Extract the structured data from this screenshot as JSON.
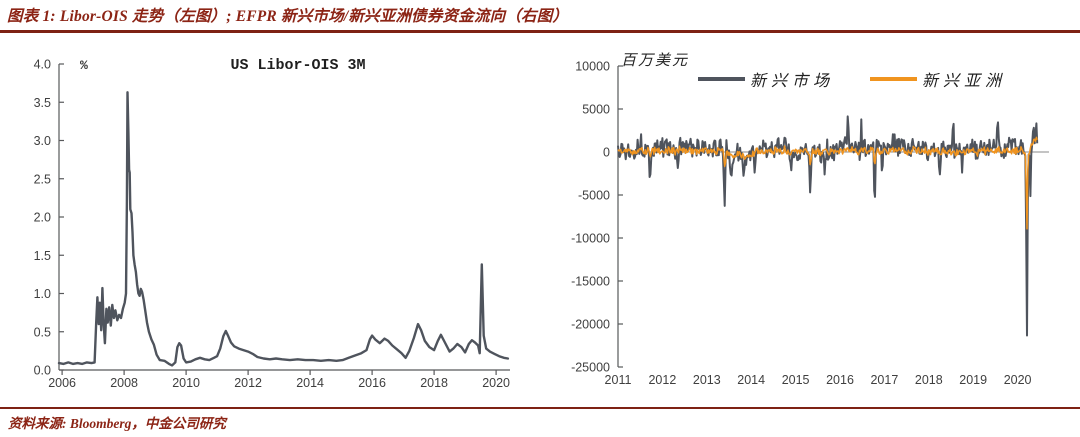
{
  "header": {
    "title": "图表 1: Libor-OIS 走势（左图）; EFPR 新兴市场/新兴亚洲债券资金流向（右图）"
  },
  "footer": {
    "source": "资料来源: Bloomberg，中金公司研究"
  },
  "colors": {
    "accent_red": "#8C2415",
    "rule_red": "#7E2214",
    "em_gray": "#4F545D",
    "asia_orange": "#F0941F",
    "axis": "#58595B",
    "zero_line": "#8a8a8a",
    "tick_text": "#3F3F3F"
  },
  "chart_data": [
    {
      "type": "line",
      "title": "US Libor-OIS 3M",
      "ylabel": "%",
      "xlim": [
        2005.9,
        2020.45
      ],
      "ylim": [
        0,
        4
      ],
      "yticks": [
        0,
        0.5,
        1,
        1.5,
        2,
        2.5,
        3,
        3.5,
        4
      ],
      "xticks": [
        2006,
        2008,
        2010,
        2012,
        2014,
        2016,
        2018,
        2020
      ],
      "grid": false,
      "series": [
        {
          "name": "US Libor-OIS 3M",
          "color_key": "em_gray",
          "points": [
            [
              2005.9,
              0.09
            ],
            [
              2006.05,
              0.08
            ],
            [
              2006.2,
              0.1
            ],
            [
              2006.35,
              0.08
            ],
            [
              2006.5,
              0.09
            ],
            [
              2006.65,
              0.08
            ],
            [
              2006.8,
              0.1
            ],
            [
              2006.95,
              0.09
            ],
            [
              2007.05,
              0.1
            ],
            [
              2007.1,
              0.62
            ],
            [
              2007.14,
              0.95
            ],
            [
              2007.18,
              0.6
            ],
            [
              2007.22,
              0.88
            ],
            [
              2007.26,
              0.52
            ],
            [
              2007.3,
              1.07
            ],
            [
              2007.34,
              0.62
            ],
            [
              2007.38,
              0.35
            ],
            [
              2007.43,
              0.8
            ],
            [
              2007.47,
              0.62
            ],
            [
              2007.52,
              0.82
            ],
            [
              2007.57,
              0.58
            ],
            [
              2007.62,
              0.85
            ],
            [
              2007.67,
              0.68
            ],
            [
              2007.72,
              0.78
            ],
            [
              2007.78,
              0.65
            ],
            [
              2007.84,
              0.72
            ],
            [
              2007.9,
              0.68
            ],
            [
              2007.96,
              0.8
            ],
            [
              2008.02,
              0.88
            ],
            [
              2008.06,
              1.0
            ],
            [
              2008.09,
              2.2
            ],
            [
              2008.11,
              3.63
            ],
            [
              2008.14,
              3.1
            ],
            [
              2008.16,
              2.62
            ],
            [
              2008.18,
              2.58
            ],
            [
              2008.2,
              2.1
            ],
            [
              2008.24,
              2.05
            ],
            [
              2008.27,
              1.8
            ],
            [
              2008.3,
              1.5
            ],
            [
              2008.34,
              1.38
            ],
            [
              2008.38,
              1.28
            ],
            [
              2008.42,
              1.12
            ],
            [
              2008.46,
              1.0
            ],
            [
              2008.5,
              0.97
            ],
            [
              2008.54,
              1.06
            ],
            [
              2008.58,
              1.02
            ],
            [
              2008.63,
              0.92
            ],
            [
              2008.68,
              0.78
            ],
            [
              2008.74,
              0.62
            ],
            [
              2008.8,
              0.5
            ],
            [
              2008.88,
              0.4
            ],
            [
              2008.96,
              0.33
            ],
            [
              2009.05,
              0.2
            ],
            [
              2009.15,
              0.13
            ],
            [
              2009.3,
              0.12
            ],
            [
              2009.45,
              0.08
            ],
            [
              2009.55,
              0.06
            ],
            [
              2009.65,
              0.1
            ],
            [
              2009.72,
              0.3
            ],
            [
              2009.78,
              0.35
            ],
            [
              2009.84,
              0.32
            ],
            [
              2009.92,
              0.15
            ],
            [
              2010.0,
              0.1
            ],
            [
              2010.15,
              0.11
            ],
            [
              2010.3,
              0.14
            ],
            [
              2010.45,
              0.16
            ],
            [
              2010.6,
              0.14
            ],
            [
              2010.75,
              0.13
            ],
            [
              2010.9,
              0.16
            ],
            [
              2011.0,
              0.18
            ],
            [
              2011.1,
              0.28
            ],
            [
              2011.2,
              0.44
            ],
            [
              2011.28,
              0.51
            ],
            [
              2011.36,
              0.44
            ],
            [
              2011.45,
              0.36
            ],
            [
              2011.55,
              0.31
            ],
            [
              2011.7,
              0.28
            ],
            [
              2011.85,
              0.26
            ],
            [
              2012.0,
              0.24
            ],
            [
              2012.15,
              0.21
            ],
            [
              2012.3,
              0.17
            ],
            [
              2012.5,
              0.15
            ],
            [
              2012.7,
              0.14
            ],
            [
              2012.9,
              0.15
            ],
            [
              2013.1,
              0.14
            ],
            [
              2013.35,
              0.13
            ],
            [
              2013.6,
              0.14
            ],
            [
              2013.85,
              0.13
            ],
            [
              2014.1,
              0.13
            ],
            [
              2014.35,
              0.12
            ],
            [
              2014.6,
              0.13
            ],
            [
              2014.85,
              0.12
            ],
            [
              2015.05,
              0.13
            ],
            [
              2015.25,
              0.16
            ],
            [
              2015.45,
              0.19
            ],
            [
              2015.65,
              0.22
            ],
            [
              2015.82,
              0.26
            ],
            [
              2015.93,
              0.4
            ],
            [
              2016.0,
              0.45
            ],
            [
              2016.1,
              0.4
            ],
            [
              2016.25,
              0.35
            ],
            [
              2016.4,
              0.41
            ],
            [
              2016.52,
              0.38
            ],
            [
              2016.65,
              0.32
            ],
            [
              2016.8,
              0.27
            ],
            [
              2016.95,
              0.22
            ],
            [
              2017.08,
              0.16
            ],
            [
              2017.2,
              0.25
            ],
            [
              2017.35,
              0.42
            ],
            [
              2017.48,
              0.6
            ],
            [
              2017.58,
              0.52
            ],
            [
              2017.7,
              0.38
            ],
            [
              2017.85,
              0.3
            ],
            [
              2018.0,
              0.26
            ],
            [
              2018.12,
              0.38
            ],
            [
              2018.22,
              0.46
            ],
            [
              2018.35,
              0.36
            ],
            [
              2018.5,
              0.24
            ],
            [
              2018.62,
              0.28
            ],
            [
              2018.75,
              0.34
            ],
            [
              2018.88,
              0.3
            ],
            [
              2019.0,
              0.23
            ],
            [
              2019.12,
              0.34
            ],
            [
              2019.22,
              0.39
            ],
            [
              2019.32,
              0.36
            ],
            [
              2019.42,
              0.32
            ],
            [
              2019.47,
              0.22
            ],
            [
              2019.54,
              1.38
            ],
            [
              2019.6,
              0.45
            ],
            [
              2019.68,
              0.28
            ],
            [
              2019.8,
              0.24
            ],
            [
              2019.95,
              0.21
            ],
            [
              2020.1,
              0.18
            ],
            [
              2020.25,
              0.16
            ],
            [
              2020.38,
              0.15
            ]
          ]
        }
      ]
    },
    {
      "type": "line",
      "title": "EFPR 新兴市场/新兴亚洲债券资金流向",
      "ylabel": "百万美元",
      "xlim": [
        2010.95,
        2020.75
      ],
      "ylim": [
        -25000,
        10000
      ],
      "yticks": [
        10000,
        5000,
        0,
        -5000,
        -10000,
        -15000,
        -20000,
        -25000
      ],
      "xticks": [
        2011,
        2012,
        2013,
        2014,
        2015,
        2016,
        2017,
        2018,
        2019,
        2020
      ],
      "grid": false,
      "legend_position": "top",
      "generator": {
        "start": 2011.0,
        "end": 2020.45,
        "points_per_year": 52
      },
      "series": [
        {
          "name": "新兴市场",
          "color_key": "em_gray",
          "seed": 13,
          "mean": 450,
          "noise": 1100,
          "wave": 800,
          "clip": [
            -2600,
            2900
          ],
          "typical_weekly_range": [
            -2500,
            2800
          ],
          "regimes": [
            [
              2013.45,
              2014.15,
              -800
            ],
            [
              2015.0,
              2015.95,
              -500
            ],
            [
              2018.15,
              2018.95,
              -400
            ],
            [
              2020.28,
              2020.45,
              900
            ]
          ],
          "key_events": [
            [
              2011.72,
              -3500,
              0.015
            ],
            [
              2012.35,
              -2000,
              0.012
            ],
            [
              2013.4,
              -6500,
              0.015
            ],
            [
              2013.55,
              -3000,
              0.02
            ],
            [
              2013.83,
              -2800,
              0.015
            ],
            [
              2014.08,
              -2500,
              0.012
            ],
            [
              2014.9,
              -2300,
              0.012
            ],
            [
              2015.33,
              -4800,
              0.015
            ],
            [
              2015.65,
              -2800,
              0.012
            ],
            [
              2016.18,
              4900,
              0.012
            ],
            [
              2016.48,
              3800,
              0.01
            ],
            [
              2016.78,
              -6600,
              0.013
            ],
            [
              2016.95,
              -2500,
              0.012
            ],
            [
              2018.25,
              -2600,
              0.015
            ],
            [
              2018.55,
              4100,
              0.012
            ],
            [
              2018.75,
              -2400,
              0.012
            ],
            [
              2019.55,
              4300,
              0.012
            ],
            [
              2020.21,
              -21500,
              0.013
            ],
            [
              2020.29,
              -5200,
              0.01
            ],
            [
              2020.36,
              3000,
              0.012
            ],
            [
              2020.42,
              3400,
              0.01
            ]
          ]
        },
        {
          "name": "新兴亚洲",
          "color_key": "asia_orange",
          "seed": 47,
          "mean": 100,
          "noise": 380,
          "wave": 260,
          "clip": [
            -1200,
            1300
          ],
          "typical_weekly_range": [
            -900,
            1200
          ],
          "regimes": [
            [
              2013.45,
              2014.1,
              -350
            ],
            [
              2018.2,
              2018.9,
              -150
            ],
            [
              2020.28,
              2020.45,
              700
            ]
          ],
          "key_events": [
            [
              2013.41,
              -1800,
              0.015
            ],
            [
              2015.33,
              -1500,
              0.013
            ],
            [
              2016.78,
              -1600,
              0.013
            ],
            [
              2020.21,
              -9000,
              0.012
            ],
            [
              2020.38,
              1500,
              0.02
            ],
            [
              2020.43,
              1800,
              0.01
            ]
          ]
        }
      ]
    }
  ]
}
